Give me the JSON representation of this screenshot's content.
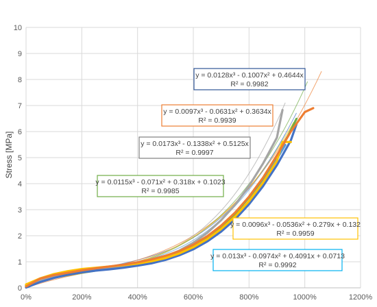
{
  "chart_data": {
    "type": "scatter",
    "title": "",
    "xlabel": "",
    "ylabel": "Stress [MPa]",
    "xlim": [
      0,
      12
    ],
    "ylim": [
      0,
      10
    ],
    "x_ticks": [
      "0%",
      "200%",
      "400%",
      "600%",
      "800%",
      "1000%",
      "1200%"
    ],
    "y_ticks": [
      "0",
      "1",
      "2",
      "3",
      "4",
      "5",
      "6",
      "7",
      "8",
      "9",
      "10"
    ],
    "grid": true,
    "legend": "none",
    "series": [
      {
        "color": "#5b9bd5",
        "x": [
          0,
          0.5,
          1,
          1.5,
          2,
          2.5,
          3,
          3.5,
          4,
          4.5,
          5,
          5.5,
          6,
          6.5,
          7,
          7.5,
          8,
          8.5,
          9,
          9.3
        ],
        "y": [
          0.04,
          0.28,
          0.43,
          0.54,
          0.62,
          0.69,
          0.76,
          0.83,
          0.91,
          1.02,
          1.16,
          1.36,
          1.62,
          1.95,
          2.36,
          2.87,
          3.47,
          4.16,
          4.95,
          5.49
        ]
      },
      {
        "color": "#70ad47",
        "x": [
          0,
          0.5,
          1,
          1.5,
          2,
          2.5,
          3,
          3.5,
          4,
          4.5,
          5,
          5.5,
          6,
          6.5,
          7,
          7.5,
          8,
          8.5,
          9,
          9.4,
          9.7
        ],
        "y": [
          0.09,
          0.3,
          0.47,
          0.58,
          0.66,
          0.73,
          0.79,
          0.85,
          0.92,
          1.02,
          1.16,
          1.35,
          1.6,
          1.93,
          2.34,
          2.85,
          3.47,
          4.21,
          5.07,
          5.84,
          6.49
        ]
      },
      {
        "color": "#a5a5a5",
        "x": [
          0,
          0.5,
          1,
          1.5,
          2,
          2.5,
          3,
          3.5,
          4,
          4.5,
          5,
          5.5,
          6,
          6.5,
          7,
          7.5,
          8,
          8.5,
          9,
          9.2
        ],
        "y": [
          0.02,
          0.27,
          0.46,
          0.58,
          0.67,
          0.73,
          0.79,
          0.85,
          0.93,
          1.05,
          1.21,
          1.43,
          1.73,
          2.11,
          2.6,
          3.19,
          3.91,
          4.77,
          5.77,
          6.83
        ]
      },
      {
        "color": "#4472c4",
        "x": [
          0,
          0.5,
          1,
          1.5,
          2,
          2.5,
          3,
          3.5,
          4,
          4.5,
          5,
          5.5,
          6,
          6.5,
          7,
          7.5,
          8,
          8.5,
          9,
          9.5,
          9.7
        ],
        "y": [
          0.01,
          0.22,
          0.38,
          0.5,
          0.59,
          0.66,
          0.71,
          0.77,
          0.85,
          0.94,
          1.07,
          1.25,
          1.48,
          1.78,
          2.16,
          2.63,
          3.21,
          3.9,
          4.71,
          5.66,
          6.28
        ]
      },
      {
        "color": "#ffc000",
        "x": [
          0,
          0.5,
          1,
          1.5,
          2,
          2.5,
          3,
          3.5,
          4,
          4.5,
          5,
          5.5,
          6,
          6.5,
          7,
          7.5,
          8,
          8.5,
          9,
          9.2,
          9.5
        ],
        "y": [
          0.13,
          0.36,
          0.53,
          0.64,
          0.72,
          0.77,
          0.82,
          0.87,
          0.93,
          1.02,
          1.14,
          1.32,
          1.56,
          1.87,
          2.26,
          2.74,
          3.33,
          4.04,
          4.87,
          5.6,
          5.6
        ]
      },
      {
        "color": "#ed7d31",
        "x": [
          0,
          0.5,
          1,
          1.5,
          2,
          2.5,
          3,
          3.5,
          4,
          4.5,
          5,
          5.5,
          6,
          6.5,
          7,
          7.5,
          8,
          8.5,
          9,
          9.5,
          10,
          10.3
        ],
        "y": [
          0.05,
          0.35,
          0.49,
          0.58,
          0.67,
          0.75,
          0.82,
          0.89,
          0.98,
          1.09,
          1.23,
          1.41,
          1.66,
          1.98,
          2.39,
          2.89,
          3.5,
          4.23,
          5.09,
          6.0,
          6.75,
          6.9
        ]
      }
    ],
    "trendlines": [
      {
        "color": "#4472c4",
        "x_end": 9.7
      },
      {
        "color": "#ed7d31",
        "x_end": 10.6
      },
      {
        "color": "#a5a5a5",
        "x_end": 9.3
      },
      {
        "color": "#70ad47",
        "x_end": 10.1
      },
      {
        "color": "#ffc000",
        "x_end": 9.6
      },
      {
        "color": "#5b9bd5",
        "x_end": 9.3
      }
    ],
    "annotations": [
      {
        "color": "#2f5597",
        "eq": "y = 0.0128x³ - 0.1007x² + 0.4644x",
        "r2": "R² = 0.9982"
      },
      {
        "color": "#ed7d31",
        "eq": "y = 0.0097x³ - 0.0631x² + 0.3634x",
        "r2": "R² = 0.9939"
      },
      {
        "color": "#7f7f7f",
        "eq": "y = 0.0173x³ - 0.1338x² + 0.5125x",
        "r2": "R² = 0.9997"
      },
      {
        "color": "#70ad47",
        "eq": "y = 0.0115x³ - 0.071x² + 0.318x + 0.1023",
        "r2": "R² = 0.9985"
      },
      {
        "color": "#ffc000",
        "eq": "y = 0.0096x³ - 0.0536x² + 0.279x + 0.132",
        "r2": "R² = 0.9959"
      },
      {
        "color": "#00b0f0",
        "eq": "y = 0.013x³ - 0.0974x² + 0.4091x + 0.0713",
        "r2": "R² = 0.9992"
      }
    ]
  }
}
